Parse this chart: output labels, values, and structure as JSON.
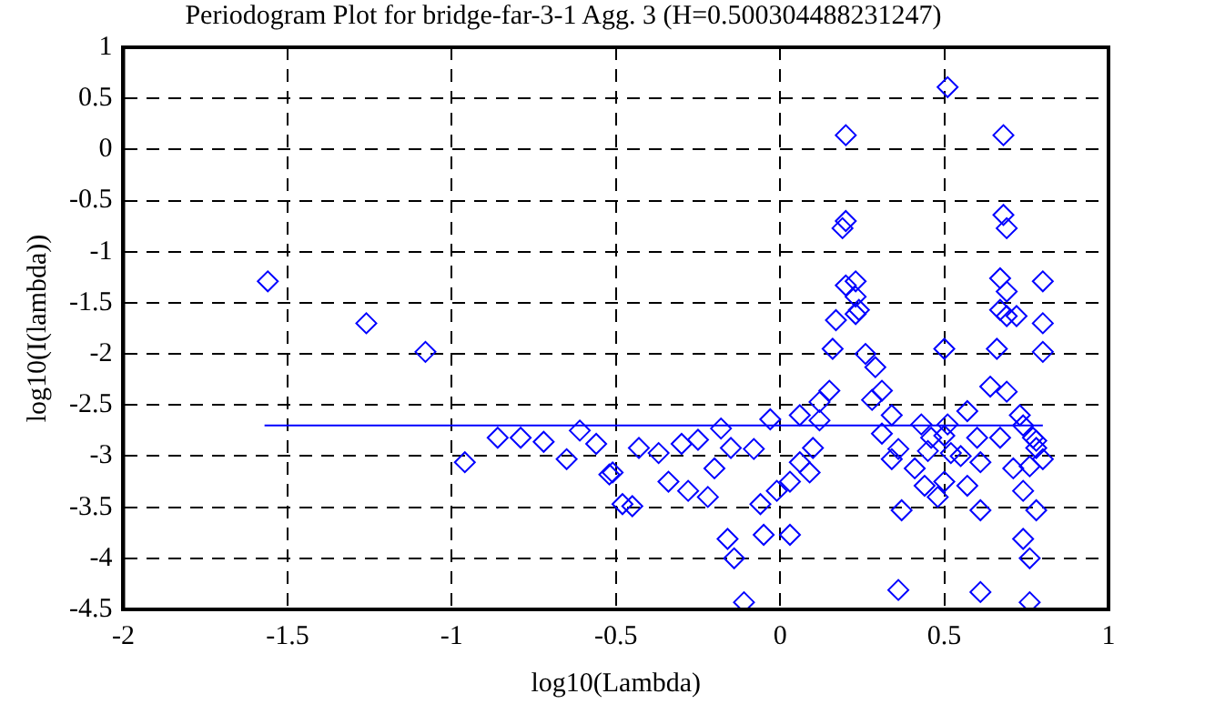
{
  "chart_data": {
    "type": "scatter",
    "title": "Periodogram Plot for bridge-far-3-1 Agg. 3 (H=0.500304488231247)",
    "xlabel": "log10(Lambda)",
    "ylabel": "log10(I(lambda))",
    "xlim": [
      -2,
      1
    ],
    "xticks": [
      -2,
      -1.5,
      -1,
      -0.5,
      0,
      0.5,
      1
    ],
    "ylim": [
      -4.5,
      1
    ],
    "yticks": [
      -4.5,
      -4,
      -3.5,
      -3,
      -2.5,
      -2,
      -1.5,
      -1,
      -0.5,
      0,
      0.5,
      1
    ],
    "grid": true,
    "legend": false,
    "series": [
      {
        "type": "scatter",
        "color": "#0000ff",
        "marker": "diamond",
        "x": [
          -1.56,
          -1.26,
          -1.08,
          -0.96,
          -0.86,
          -0.79,
          -0.72,
          -0.65,
          -0.61,
          -0.56,
          -0.52,
          -0.48,
          -0.51,
          -0.45,
          -0.43,
          -0.37,
          -0.3,
          -0.25,
          -0.18,
          -0.34,
          -0.28,
          -0.22,
          -0.15,
          -0.2,
          -0.08,
          -0.03,
          -0.06,
          -0.01,
          -0.16,
          -0.14,
          -0.05,
          0.03,
          -0.11,
          0.06,
          0.12,
          0.1,
          0.06,
          0.03,
          0.09,
          0.15,
          0.12,
          0.17,
          0.23,
          0.16,
          0.26,
          0.29,
          0.31,
          0.28,
          0.34,
          0.31,
          0.36,
          0.34,
          0.37,
          0.36,
          0.43,
          0.46,
          0.41,
          0.44,
          0.5,
          0.51,
          0.52,
          0.5,
          0.48,
          0.57,
          0.6,
          0.61,
          0.57,
          0.61,
          0.61,
          0.66,
          0.64,
          0.69,
          0.73,
          0.67,
          0.71,
          0.74,
          0.78,
          0.74,
          0.76,
          0.76,
          0.8,
          0.8,
          0.77,
          0.78,
          0.8,
          0.72,
          0.51,
          0.2,
          0.68,
          0.2,
          0.19,
          0.68,
          0.69,
          0.2,
          0.23,
          0.23,
          0.24,
          0.67,
          0.69,
          0.8,
          0.67,
          0.69,
          0.5,
          0.55,
          0.45,
          0.78,
          0.76,
          0.74
        ],
        "values": [
          -1.29,
          -1.7,
          -1.98,
          -3.06,
          -2.82,
          -2.82,
          -2.86,
          -3.03,
          -2.75,
          -2.88,
          -3.18,
          -3.47,
          -3.16,
          -3.49,
          -2.92,
          -2.97,
          -2.88,
          -2.84,
          -2.73,
          -3.25,
          -3.34,
          -3.4,
          -2.92,
          -3.12,
          -2.93,
          -2.64,
          -3.47,
          -3.34,
          -3.81,
          -4.0,
          -3.77,
          -3.77,
          -4.43,
          -2.6,
          -2.65,
          -2.92,
          -3.06,
          -3.25,
          -3.16,
          -2.36,
          -2.47,
          -1.67,
          -1.61,
          -1.95,
          -2.0,
          -2.13,
          -2.36,
          -2.45,
          -2.6,
          -2.78,
          -2.93,
          -3.03,
          -3.53,
          -4.31,
          -2.69,
          -2.82,
          -3.12,
          -3.29,
          -1.95,
          -2.69,
          -2.97,
          -3.25,
          -3.4,
          -2.56,
          -2.82,
          -3.06,
          -3.29,
          -3.53,
          -4.33,
          -1.95,
          -2.32,
          -2.37,
          -2.6,
          -2.82,
          -3.12,
          -3.34,
          -3.53,
          -3.81,
          -4.0,
          -4.43,
          -1.7,
          -1.98,
          -2.82,
          -2.92,
          -3.03,
          -1.63,
          0.61,
          0.14,
          0.14,
          -0.7,
          -0.77,
          -0.64,
          -0.77,
          -1.33,
          -1.29,
          -1.44,
          -1.57,
          -1.26,
          -1.39,
          -1.29,
          -1.57,
          -1.63,
          -2.8,
          -3.0,
          -2.95,
          -2.85,
          -3.1,
          -2.7
        ]
      },
      {
        "type": "line",
        "color": "#0000ff",
        "marker": "none",
        "x": [
          -1.57,
          0.8
        ],
        "values": [
          -2.7,
          -2.7
        ]
      }
    ]
  }
}
